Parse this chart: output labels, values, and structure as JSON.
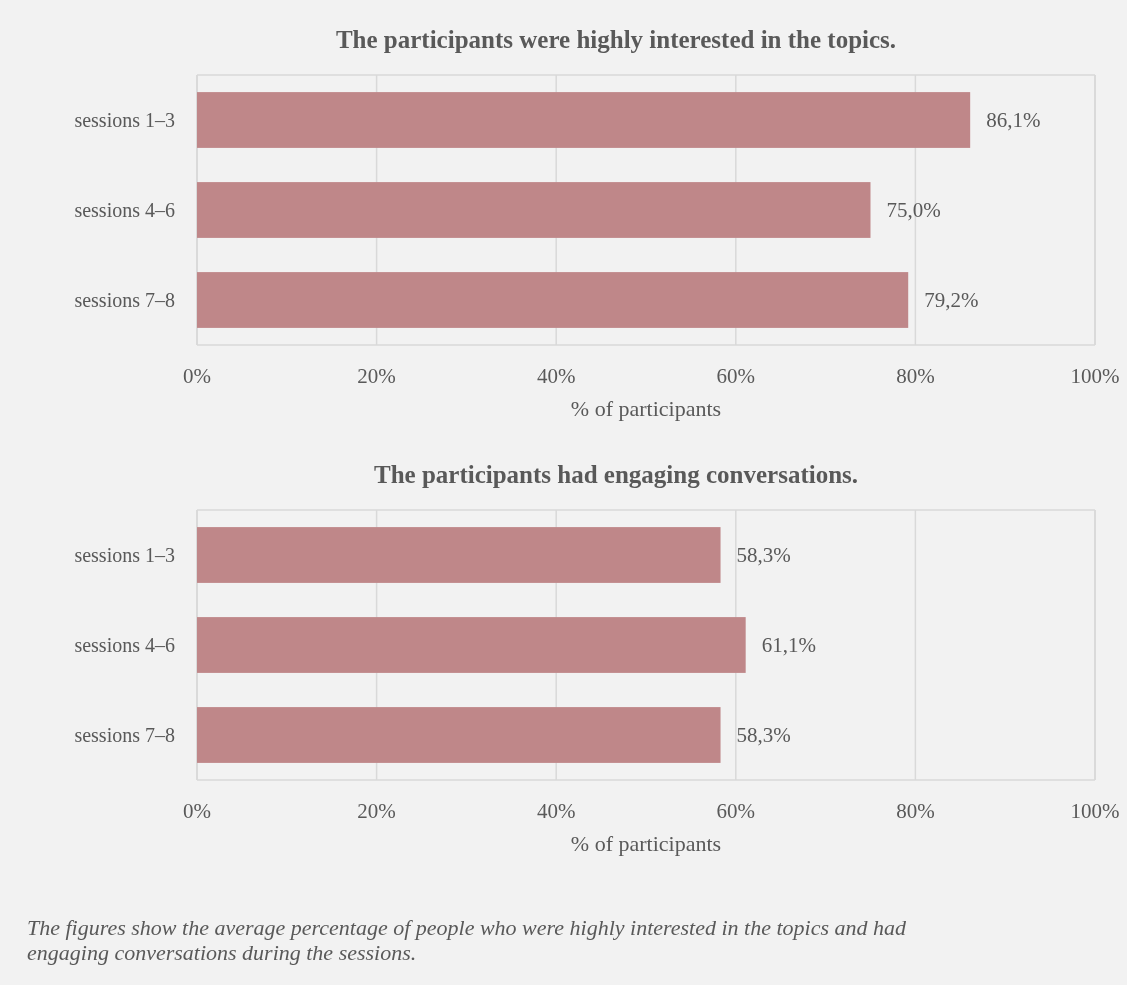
{
  "chart_data": [
    {
      "type": "bar",
      "orientation": "horizontal",
      "title": "The participants were highly interested in the topics.",
      "categories": [
        "sessions 1–3",
        "sessions 4–6",
        "sessions 7–8"
      ],
      "values": [
        86.1,
        75.0,
        79.2
      ],
      "value_labels": [
        "86,1%",
        "75,0%",
        "79,2%"
      ],
      "color": "#bf8789",
      "xlim": [
        0,
        100
      ],
      "xticks": [
        {
          "value": 0,
          "label": "0%"
        },
        {
          "value": 20,
          "label": "20%"
        },
        {
          "value": 40,
          "label": "40%"
        },
        {
          "value": 60,
          "label": "60%"
        },
        {
          "value": 80,
          "label": "80%"
        },
        {
          "value": 100,
          "label": "100%"
        }
      ],
      "xlabel": "% of participants",
      "grid": "x"
    },
    {
      "type": "bar",
      "orientation": "horizontal",
      "title": "The participants had engaging conversations.",
      "categories": [
        "sessions 1–3",
        "sessions 4–6",
        "sessions 7–8"
      ],
      "values": [
        58.3,
        61.1,
        58.3
      ],
      "value_labels": [
        "58,3%",
        "61,1%",
        "58,3%"
      ],
      "color": "#bf8789",
      "xlim": [
        0,
        100
      ],
      "xticks": [
        {
          "value": 0,
          "label": "0%"
        },
        {
          "value": 20,
          "label": "20%"
        },
        {
          "value": 40,
          "label": "40%"
        },
        {
          "value": 60,
          "label": "60%"
        },
        {
          "value": 80,
          "label": "80%"
        },
        {
          "value": 100,
          "label": "100%"
        }
      ],
      "xlabel": "% of participants",
      "grid": "x",
      "annotations": [
        "The figures show the average percentage of people who were highly interested in the topics and had engaging conversations during the sessions."
      ]
    }
  ]
}
